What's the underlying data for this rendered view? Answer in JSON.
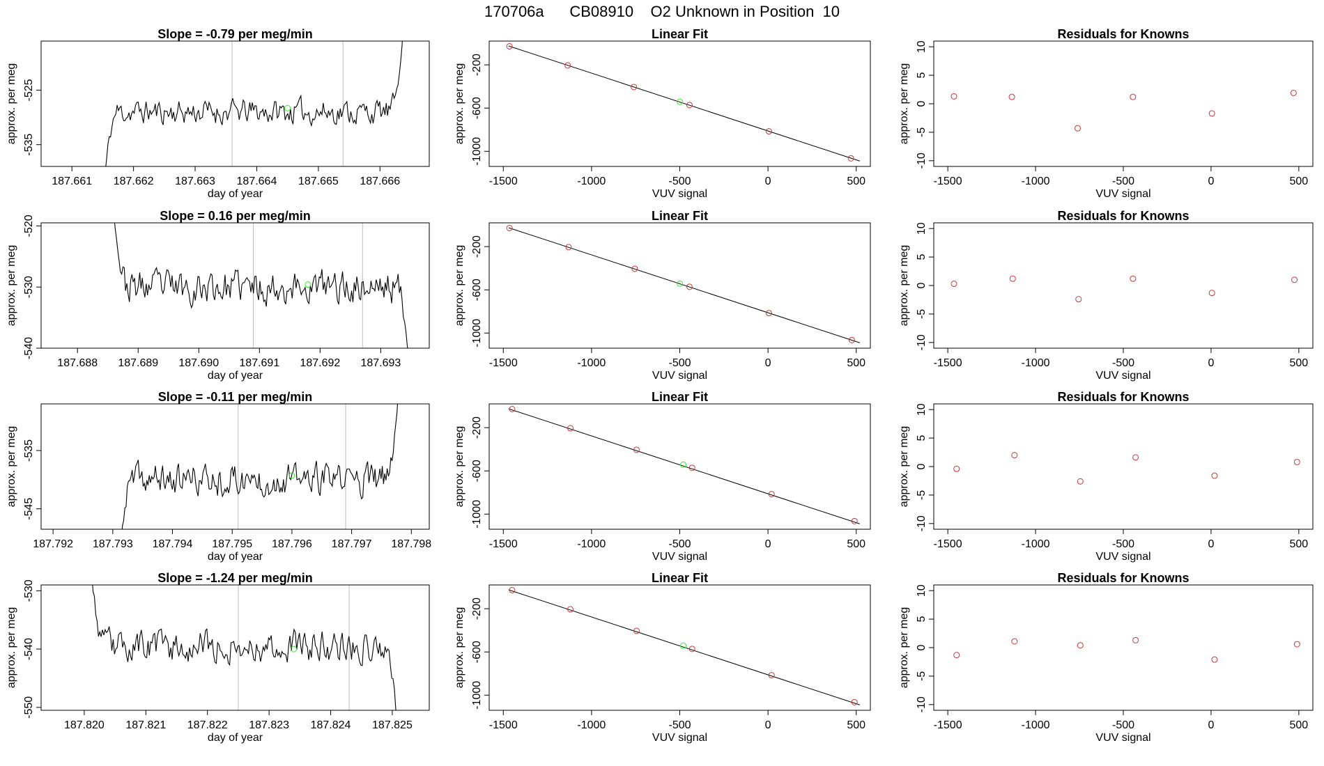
{
  "title": "170706a      CB08910    O2 Unknown in Position  10",
  "colors": {
    "line": "#000000",
    "frame": "#000000",
    "known_point": "#cc3333",
    "unknown_point": "#33ee33",
    "vertical_marker": "#bbbbbb"
  },
  "chart_data": [
    {
      "type": "line",
      "title": "Slope =  -0.79  per meg/min",
      "xlabel": "day of year",
      "ylabel": "approx. per meg",
      "xlim": [
        187.6605,
        187.6668
      ],
      "ylim": [
        -539,
        -516
      ],
      "xticks": [
        187.661,
        187.662,
        187.663,
        187.664,
        187.665,
        187.666
      ],
      "xtick_labels": [
        "187.661",
        "187.662",
        "187.663",
        "187.664",
        "187.665",
        "187.666"
      ],
      "yticks": [
        -525,
        -535
      ],
      "ytick_labels": [
        "-525",
        "-535"
      ],
      "vlines": [
        187.6636,
        187.6654
      ],
      "highlight": {
        "x": 187.6645,
        "y": -528.3
      },
      "signal": {
        "x_start": 187.6615,
        "x_end": 187.6664,
        "baseline": -529,
        "amplitude": 1.6,
        "start_value": -545,
        "end_value": -510,
        "seed": 11
      }
    },
    {
      "type": "scatter",
      "title": "Linear Fit",
      "xlabel": "VUV signal",
      "ylabel": "approx. per meg",
      "xlim": [
        -1580,
        580
      ],
      "ylim": [
        -1140,
        20
      ],
      "xticks": [
        -1500,
        -1000,
        -500,
        0,
        500
      ],
      "xtick_labels": [
        "-1500",
        "-1000",
        "-500",
        "0",
        "500"
      ],
      "yticks": [
        -200,
        -600,
        -1000
      ],
      "ytick_labels": [
        "-200",
        "-600",
        "-1000"
      ],
      "fit_line": {
        "x": [
          -1470,
          520
        ],
        "y": [
          -25,
          -1090
        ]
      },
      "knowns": {
        "x": [
          -1465,
          -1135,
          -760,
          -445,
          5,
          470
        ],
        "y": [
          -28,
          -205,
          -405,
          -572,
          -815,
          -1065
        ]
      },
      "unknown": {
        "x": -500,
        "y": -542
      }
    },
    {
      "type": "scatter",
      "title": "Residuals for Knowns",
      "xlabel": "VUV signal",
      "ylabel": "approx. per meg",
      "xlim": [
        -1580,
        580
      ],
      "ylim": [
        -11,
        11
      ],
      "xticks": [
        -1500,
        -1000,
        -500,
        0,
        500
      ],
      "xtick_labels": [
        "-1500",
        "-1000",
        "-500",
        "0",
        "500"
      ],
      "yticks": [
        10,
        5,
        0,
        -5,
        -10
      ],
      "ytick_labels": [
        "10",
        "5",
        "0",
        "-5",
        "-10"
      ],
      "points": {
        "x": [
          -1465,
          -1135,
          -760,
          -445,
          5,
          470
        ],
        "y": [
          1.3,
          1.2,
          -4.3,
          1.2,
          -1.7,
          1.9
        ]
      }
    },
    {
      "type": "line",
      "title": "Slope =  0.16  per meg/min",
      "xlabel": "day of year",
      "ylabel": "approx. per meg",
      "xlim": [
        187.6874,
        187.6938
      ],
      "ylim": [
        -540,
        -519.5
      ],
      "xticks": [
        187.688,
        187.689,
        187.69,
        187.691,
        187.692,
        187.693
      ],
      "xtick_labels": [
        "187.688",
        "187.689",
        "187.690",
        "187.691",
        "187.692",
        "187.693"
      ],
      "yticks": [
        -520,
        -530,
        -540
      ],
      "ytick_labels": [
        "-520",
        "-530",
        "-540"
      ],
      "vlines": [
        187.6909,
        187.6927
      ],
      "highlight": {
        "x": 187.6918,
        "y": -529.6
      },
      "signal": {
        "x_start": 187.6886,
        "x_end": 187.6935,
        "baseline": -530,
        "amplitude": 1.9,
        "start_value": -518,
        "end_value": -545,
        "seed": 23
      }
    },
    {
      "type": "scatter",
      "title": "Linear Fit",
      "xlabel": "VUV signal",
      "ylabel": "approx. per meg",
      "xlim": [
        -1580,
        580
      ],
      "ylim": [
        -1140,
        20
      ],
      "xticks": [
        -1500,
        -1000,
        -500,
        0,
        500
      ],
      "xtick_labels": [
        "-1500",
        "-1000",
        "-500",
        "0",
        "500"
      ],
      "yticks": [
        -200,
        -600,
        -1000
      ],
      "ytick_labels": [
        "-200",
        "-600",
        "-1000"
      ],
      "fit_line": {
        "x": [
          -1470,
          520
        ],
        "y": [
          -25,
          -1090
        ]
      },
      "knowns": {
        "x": [
          -1465,
          -1130,
          -755,
          -445,
          5,
          475
        ],
        "y": [
          -28,
          -205,
          -405,
          -572,
          -815,
          -1065
        ]
      },
      "unknown": {
        "x": -500,
        "y": -542
      }
    },
    {
      "type": "scatter",
      "title": "Residuals for Knowns",
      "xlabel": "VUV signal",
      "ylabel": "approx. per meg",
      "xlim": [
        -1580,
        580
      ],
      "ylim": [
        -11,
        11
      ],
      "xticks": [
        -1500,
        -1000,
        -500,
        0,
        500
      ],
      "xtick_labels": [
        "-1500",
        "-1000",
        "-500",
        "0",
        "500"
      ],
      "yticks": [
        10,
        5,
        0,
        -5,
        -10
      ],
      "ytick_labels": [
        "10",
        "5",
        "0",
        "-5",
        "-10"
      ],
      "points": {
        "x": [
          -1465,
          -1130,
          -755,
          -445,
          5,
          475
        ],
        "y": [
          0.3,
          1.2,
          -2.4,
          1.2,
          -1.3,
          1.0
        ]
      }
    },
    {
      "type": "line",
      "title": "Slope =  -0.11  per meg/min",
      "xlabel": "day of year",
      "ylabel": "approx. per meg",
      "xlim": [
        187.7918,
        187.7983
      ],
      "ylim": [
        -548.5,
        -527
      ],
      "xticks": [
        187.792,
        187.793,
        187.794,
        187.795,
        187.796,
        187.797,
        187.798
      ],
      "xtick_labels": [
        "187.792",
        "187.793",
        "187.794",
        "187.795",
        "187.796",
        "187.797",
        "187.798"
      ],
      "yticks": [
        -535,
        -545
      ],
      "ytick_labels": [
        "-535",
        "-545"
      ],
      "vlines": [
        187.7951,
        187.7969
      ],
      "highlight": {
        "x": 187.796,
        "y": -539.3
      },
      "signal": {
        "x_start": 187.7931,
        "x_end": 187.7978,
        "baseline": -540,
        "amplitude": 1.9,
        "start_value": -555,
        "end_value": -522,
        "seed": 37
      }
    },
    {
      "type": "scatter",
      "title": "Linear Fit",
      "xlabel": "VUV signal",
      "ylabel": "approx. per meg",
      "xlim": [
        -1580,
        580
      ],
      "ylim": [
        -1140,
        20
      ],
      "xticks": [
        -1500,
        -1000,
        -500,
        0,
        500
      ],
      "xtick_labels": [
        "-1500",
        "-1000",
        "-500",
        "0",
        "500"
      ],
      "yticks": [
        -200,
        -600,
        -1000
      ],
      "ytick_labels": [
        "-200",
        "-600",
        "-1000"
      ],
      "fit_line": {
        "x": [
          -1470,
          520
        ],
        "y": [
          -25,
          -1090
        ]
      },
      "knowns": {
        "x": [
          -1450,
          -1120,
          -745,
          -430,
          20,
          490
        ],
        "y": [
          -28,
          -205,
          -405,
          -572,
          -815,
          -1065
        ]
      },
      "unknown": {
        "x": -480,
        "y": -542
      }
    },
    {
      "type": "scatter",
      "title": "Residuals for Knowns",
      "xlabel": "VUV signal",
      "ylabel": "approx. per meg",
      "xlim": [
        -1580,
        580
      ],
      "ylim": [
        -11,
        11
      ],
      "xticks": [
        -1500,
        -1000,
        -500,
        0,
        500
      ],
      "xtick_labels": [
        "-1500",
        "-1000",
        "-500",
        "0",
        "500"
      ],
      "yticks": [
        10,
        5,
        0,
        -5,
        -10
      ],
      "ytick_labels": [
        "10",
        "5",
        "0",
        "-5",
        "-10"
      ],
      "points": {
        "x": [
          -1450,
          -1120,
          -745,
          -430,
          20,
          490
        ],
        "y": [
          -0.4,
          2.0,
          -2.6,
          1.6,
          -1.6,
          0.8
        ]
      }
    },
    {
      "type": "line",
      "title": "Slope =  -1.24  per meg/min",
      "xlabel": "day of year",
      "ylabel": "approx. per meg",
      "xlim": [
        187.8193,
        187.8256
      ],
      "ylim": [
        -550.5,
        -529
      ],
      "xticks": [
        187.82,
        187.821,
        187.822,
        187.823,
        187.824,
        187.825
      ],
      "xtick_labels": [
        "187.820",
        "187.821",
        "187.822",
        "187.823",
        "187.824",
        "187.825"
      ],
      "yticks": [
        -530,
        -540,
        -550
      ],
      "ytick_labels": [
        "-530",
        "-540",
        "-550"
      ],
      "vlines": [
        187.8225,
        187.8243
      ],
      "highlight": {
        "x": 187.8234,
        "y": -540.0
      },
      "signal": {
        "x_start": 187.8201,
        "x_end": 187.8251,
        "baseline": -539.5,
        "amplitude": 1.9,
        "start_value": -525,
        "end_value": -555,
        "seed": 53
      }
    },
    {
      "type": "scatter",
      "title": "Linear Fit",
      "xlabel": "VUV signal",
      "ylabel": "approx. per meg",
      "xlim": [
        -1580,
        580
      ],
      "ylim": [
        -1140,
        20
      ],
      "xticks": [
        -1500,
        -1000,
        -500,
        0,
        500
      ],
      "xtick_labels": [
        "-1500",
        "-1000",
        "-500",
        "0",
        "500"
      ],
      "yticks": [
        -200,
        -600,
        -1000
      ],
      "ytick_labels": [
        "-200",
        "-600",
        "-1000"
      ],
      "fit_line": {
        "x": [
          -1470,
          520
        ],
        "y": [
          -25,
          -1090
        ]
      },
      "knowns": {
        "x": [
          -1450,
          -1120,
          -745,
          -430,
          20,
          490
        ],
        "y": [
          -28,
          -205,
          -405,
          -572,
          -815,
          -1065
        ]
      },
      "unknown": {
        "x": -480,
        "y": -542
      }
    },
    {
      "type": "scatter",
      "title": "Residuals for Knowns",
      "xlabel": "VUV signal",
      "ylabel": "approx. per meg",
      "xlim": [
        -1580,
        580
      ],
      "ylim": [
        -11,
        11
      ],
      "xticks": [
        -1500,
        -1000,
        -500,
        0,
        500
      ],
      "xtick_labels": [
        "-1500",
        "-1000",
        "-500",
        "0",
        "500"
      ],
      "yticks": [
        10,
        5,
        0,
        -5,
        -10
      ],
      "ytick_labels": [
        "10",
        "5",
        "0",
        "-5",
        "-10"
      ],
      "points": {
        "x": [
          -1450,
          -1120,
          -745,
          -430,
          20,
          490
        ],
        "y": [
          -1.3,
          1.1,
          0.4,
          1.3,
          -2.1,
          0.6
        ]
      }
    }
  ]
}
